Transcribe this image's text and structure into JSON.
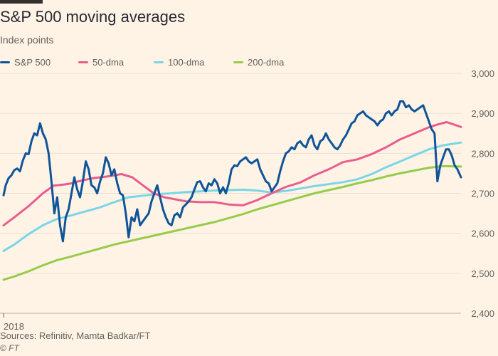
{
  "header": {
    "title": "S&P 500 moving averages",
    "subtitle": "Index points"
  },
  "footer": {
    "source": "Sources: Refinitiv, Mamta Badkar/FT",
    "credit": "© FT"
  },
  "colors": {
    "background": "#fff3e6",
    "grid": "#e7dfd6",
    "axis_text": "#66605c"
  },
  "chart_data": {
    "type": "line",
    "title": "S&P 500 moving averages",
    "ylabel": "Index points",
    "ylim": [
      2400,
      3000
    ],
    "yticks": [
      2400,
      2500,
      2600,
      2700,
      2800,
      2900,
      3000
    ],
    "ytick_labels": [
      "2,400",
      "2,500",
      "2,600",
      "2,700",
      "2,800",
      "2,900",
      "3,000"
    ],
    "x_label_text": "2018",
    "x_label_at": 5,
    "xlim": [
      0,
      645
    ],
    "grid": true,
    "legend": "top-left",
    "series": [
      {
        "name": "S&P 500",
        "color": "#0f5499",
        "x": [
          5,
          8,
          12,
          16,
          20,
          24,
          28,
          32,
          36,
          40,
          44,
          48,
          52,
          56,
          60,
          64,
          68,
          72,
          76,
          80,
          84,
          88,
          92,
          96,
          100,
          104,
          108,
          112,
          116,
          120,
          124,
          128,
          132,
          136,
          140,
          144,
          148,
          152,
          156,
          160,
          164,
          168,
          172,
          176,
          180,
          184,
          188,
          192,
          196,
          200,
          204,
          208,
          212,
          216,
          220,
          224,
          228,
          232,
          236,
          240,
          244,
          248,
          252,
          256,
          260,
          264,
          268,
          272,
          276,
          280,
          284,
          288,
          292,
          296,
          300,
          304,
          308,
          312,
          316,
          320,
          324,
          328,
          332,
          336,
          340,
          344,
          348,
          352,
          356,
          360,
          364,
          368,
          372,
          376,
          380,
          384,
          388,
          392,
          396,
          400,
          404,
          408,
          412,
          416,
          420,
          424,
          428,
          432,
          436,
          440,
          444,
          448,
          452,
          456,
          460,
          464,
          468,
          472,
          476,
          480,
          484,
          488,
          492,
          496,
          500,
          504,
          508,
          512,
          516,
          520,
          524,
          528,
          532,
          536,
          540,
          544,
          548,
          552,
          556,
          560,
          564,
          568,
          572,
          576,
          580,
          584,
          588,
          592,
          596,
          600,
          604,
          608,
          612,
          616,
          620,
          624,
          628,
          632,
          636,
          640,
          645
        ],
        "values": [
          2695,
          2720,
          2738,
          2745,
          2758,
          2762,
          2755,
          2782,
          2800,
          2798,
          2830,
          2850,
          2845,
          2875,
          2850,
          2835,
          2800,
          2730,
          2650,
          2690,
          2620,
          2580,
          2640,
          2660,
          2700,
          2740,
          2710,
          2690,
          2730,
          2780,
          2760,
          2720,
          2715,
          2700,
          2730,
          2750,
          2790,
          2775,
          2745,
          2760,
          2725,
          2700,
          2695,
          2650,
          2590,
          2640,
          2630,
          2660,
          2620,
          2630,
          2640,
          2650,
          2680,
          2700,
          2720,
          2690,
          2660,
          2640,
          2625,
          2620,
          2645,
          2650,
          2640,
          2665,
          2672,
          2680,
          2690,
          2710,
          2728,
          2730,
          2715,
          2705,
          2725,
          2720,
          2735,
          2725,
          2700,
          2715,
          2700,
          2725,
          2760,
          2770,
          2768,
          2780,
          2785,
          2790,
          2780,
          2775,
          2780,
          2785,
          2760,
          2745,
          2730,
          2725,
          2705,
          2715,
          2725,
          2755,
          2780,
          2800,
          2805,
          2815,
          2810,
          2825,
          2830,
          2820,
          2815,
          2835,
          2845,
          2820,
          2810,
          2830,
          2835,
          2850,
          2835,
          2825,
          2815,
          2810,
          2820,
          2835,
          2845,
          2860,
          2875,
          2880,
          2895,
          2900,
          2905,
          2895,
          2890,
          2885,
          2880,
          2870,
          2880,
          2885,
          2900,
          2905,
          2895,
          2905,
          2910,
          2930,
          2930,
          2915,
          2920,
          2910,
          2905,
          2910,
          2915,
          2920,
          2900,
          2880,
          2860,
          2850,
          2730,
          2770,
          2790,
          2810,
          2810,
          2795,
          2770,
          2760,
          2740
        ]
      },
      {
        "name": "50-dma",
        "color": "#e95d8c",
        "x": [
          5,
          20,
          40,
          60,
          75,
          90,
          100,
          110,
          130,
          150,
          170,
          185,
          200,
          215,
          230,
          245,
          260,
          280,
          300,
          320,
          340,
          360,
          380,
          400,
          420,
          440,
          460,
          480,
          500,
          520,
          540,
          560,
          580,
          600,
          612,
          625,
          645
        ],
        "values": [
          2620,
          2640,
          2668,
          2700,
          2719,
          2722,
          2725,
          2730,
          2738,
          2742,
          2748,
          2740,
          2720,
          2700,
          2690,
          2685,
          2680,
          2678,
          2678,
          2672,
          2670,
          2683,
          2700,
          2716,
          2727,
          2745,
          2760,
          2778,
          2785,
          2798,
          2815,
          2835,
          2850,
          2865,
          2872,
          2878,
          2866
        ]
      },
      {
        "name": "100-dma",
        "color": "#7ad6e6",
        "x": [
          5,
          20,
          40,
          60,
          80,
          100,
          120,
          140,
          160,
          180,
          200,
          220,
          240,
          260,
          280,
          300,
          320,
          340,
          360,
          380,
          400,
          420,
          440,
          460,
          480,
          500,
          520,
          540,
          560,
          580,
          600,
          620,
          645
        ],
        "values": [
          2556,
          2572,
          2598,
          2620,
          2636,
          2645,
          2655,
          2665,
          2678,
          2690,
          2694,
          2698,
          2700,
          2703,
          2705,
          2707,
          2708,
          2709,
          2707,
          2702,
          2706,
          2712,
          2718,
          2723,
          2728,
          2735,
          2748,
          2765,
          2780,
          2795,
          2810,
          2820,
          2827
        ]
      },
      {
        "name": "200-dma",
        "color": "#96cc4a",
        "x": [
          5,
          20,
          40,
          60,
          80,
          100,
          120,
          140,
          160,
          180,
          200,
          220,
          240,
          260,
          280,
          300,
          320,
          340,
          360,
          380,
          400,
          420,
          440,
          460,
          480,
          500,
          520,
          540,
          560,
          580,
          600,
          620,
          645
        ],
        "values": [
          2484,
          2492,
          2505,
          2520,
          2533,
          2542,
          2552,
          2562,
          2572,
          2580,
          2588,
          2596,
          2604,
          2612,
          2620,
          2628,
          2638,
          2648,
          2660,
          2670,
          2680,
          2690,
          2700,
          2708,
          2716,
          2725,
          2733,
          2742,
          2750,
          2757,
          2764,
          2768,
          2767
        ]
      }
    ]
  }
}
